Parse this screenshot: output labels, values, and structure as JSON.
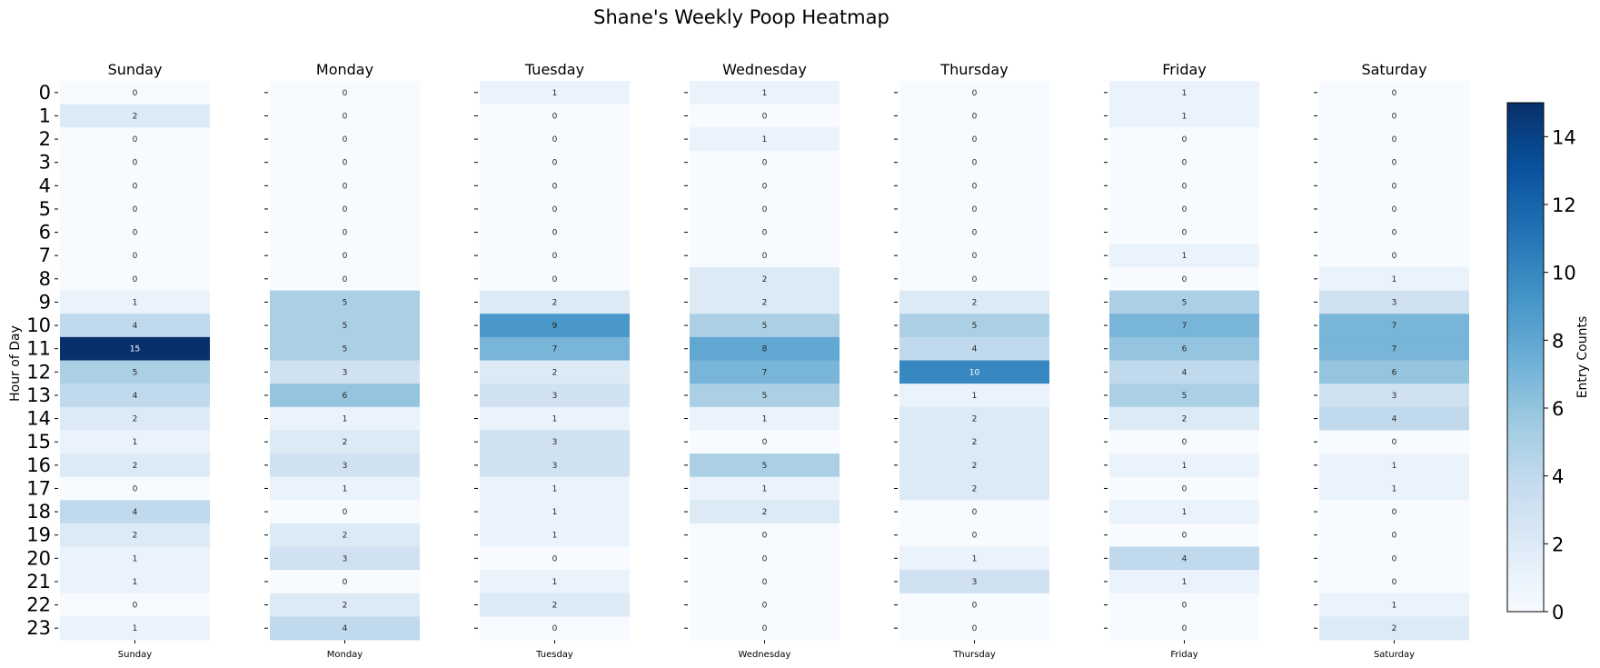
{
  "chart_data": {
    "type": "heatmap",
    "title": "Shane's Weekly Poop Heatmap",
    "ylabel": "Hour of Day",
    "colorbar_label": "Entry Counts",
    "colorbar_range": [
      0,
      15
    ],
    "colorbar_ticks": [
      "0",
      "2",
      "4",
      "6",
      "8",
      "10",
      "12",
      "14"
    ],
    "colormap": "Blues",
    "days": [
      "Sunday",
      "Monday",
      "Tuesday",
      "Wednesday",
      "Thursday",
      "Friday",
      "Saturday"
    ],
    "hours": [
      "0",
      "1",
      "2",
      "3",
      "4",
      "5",
      "6",
      "7",
      "8",
      "9",
      "10",
      "11",
      "12",
      "13",
      "14",
      "15",
      "16",
      "17",
      "18",
      "19",
      "20",
      "21",
      "22",
      "23"
    ],
    "values": [
      [
        0,
        2,
        0,
        0,
        0,
        0,
        0,
        0,
        0,
        1,
        4,
        15,
        5,
        4,
        2,
        1,
        2,
        0,
        4,
        2,
        1,
        1,
        0,
        1
      ],
      [
        0,
        0,
        0,
        0,
        0,
        0,
        0,
        0,
        0,
        5,
        5,
        5,
        3,
        6,
        1,
        2,
        3,
        1,
        0,
        2,
        3,
        0,
        2,
        4
      ],
      [
        1,
        0,
        0,
        0,
        0,
        0,
        0,
        0,
        0,
        2,
        9,
        7,
        2,
        3,
        1,
        3,
        3,
        1,
        1,
        1,
        0,
        1,
        2,
        0
      ],
      [
        1,
        0,
        1,
        0,
        0,
        0,
        0,
        0,
        2,
        2,
        5,
        8,
        7,
        5,
        1,
        0,
        5,
        1,
        2,
        0,
        0,
        0,
        0,
        0
      ],
      [
        0,
        0,
        0,
        0,
        0,
        0,
        0,
        0,
        0,
        2,
        5,
        4,
        10,
        1,
        2,
        2,
        2,
        2,
        0,
        0,
        1,
        3,
        0,
        0
      ],
      [
        1,
        1,
        0,
        0,
        0,
        0,
        0,
        1,
        0,
        5,
        7,
        6,
        4,
        5,
        2,
        0,
        1,
        0,
        1,
        0,
        4,
        1,
        0,
        0
      ],
      [
        0,
        0,
        0,
        0,
        0,
        0,
        0,
        0,
        1,
        3,
        7,
        7,
        6,
        3,
        4,
        0,
        1,
        1,
        0,
        0,
        0,
        0,
        1,
        2
      ]
    ]
  }
}
